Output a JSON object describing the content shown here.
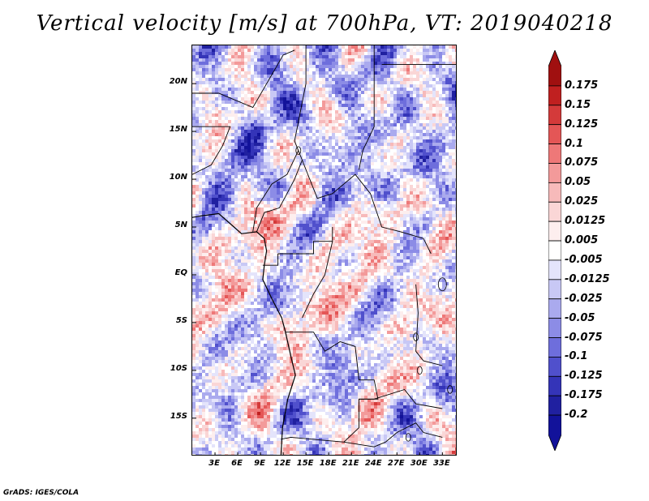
{
  "title": "Vertical velocity [m/s] at 700hPa, VT: 2019040218",
  "footer": "GrADS: IGES/COLA",
  "map": {
    "lat_range": [
      -19,
      24
    ],
    "lon_range": [
      0,
      35
    ],
    "lat_ticks": [
      "20N",
      "15N",
      "10N",
      "5N",
      "EQ",
      "5S",
      "10S",
      "15S"
    ],
    "lon_ticks": [
      "3E",
      "6E",
      "9E",
      "12E",
      "15E",
      "18E",
      "21E",
      "24E",
      "27E",
      "30E",
      "33E"
    ],
    "field_description": "Shaded vertical velocity with coastlines and country borders over central Africa"
  },
  "colorbar": {
    "labels": [
      "0.175",
      "0.15",
      "0.125",
      "0.1",
      "0.075",
      "0.05",
      "0.025",
      "0.0125",
      "0.005",
      "-0.005",
      "-0.0125",
      "-0.025",
      "-0.05",
      "-0.075",
      "-0.1",
      "-0.125",
      "-0.175",
      "-0.2"
    ],
    "colors": [
      "#a01010",
      "#c02020",
      "#d43a3a",
      "#e45656",
      "#ee7878",
      "#f39a9a",
      "#f7baba",
      "#fad6d6",
      "#fdeeee",
      "#ffffff",
      "#e4e4fb",
      "#c8c8f5",
      "#aaaaee",
      "#8c8ce6",
      "#6e6edc",
      "#5050cc",
      "#3434b8",
      "#2020a0",
      "#12129a"
    ]
  }
}
